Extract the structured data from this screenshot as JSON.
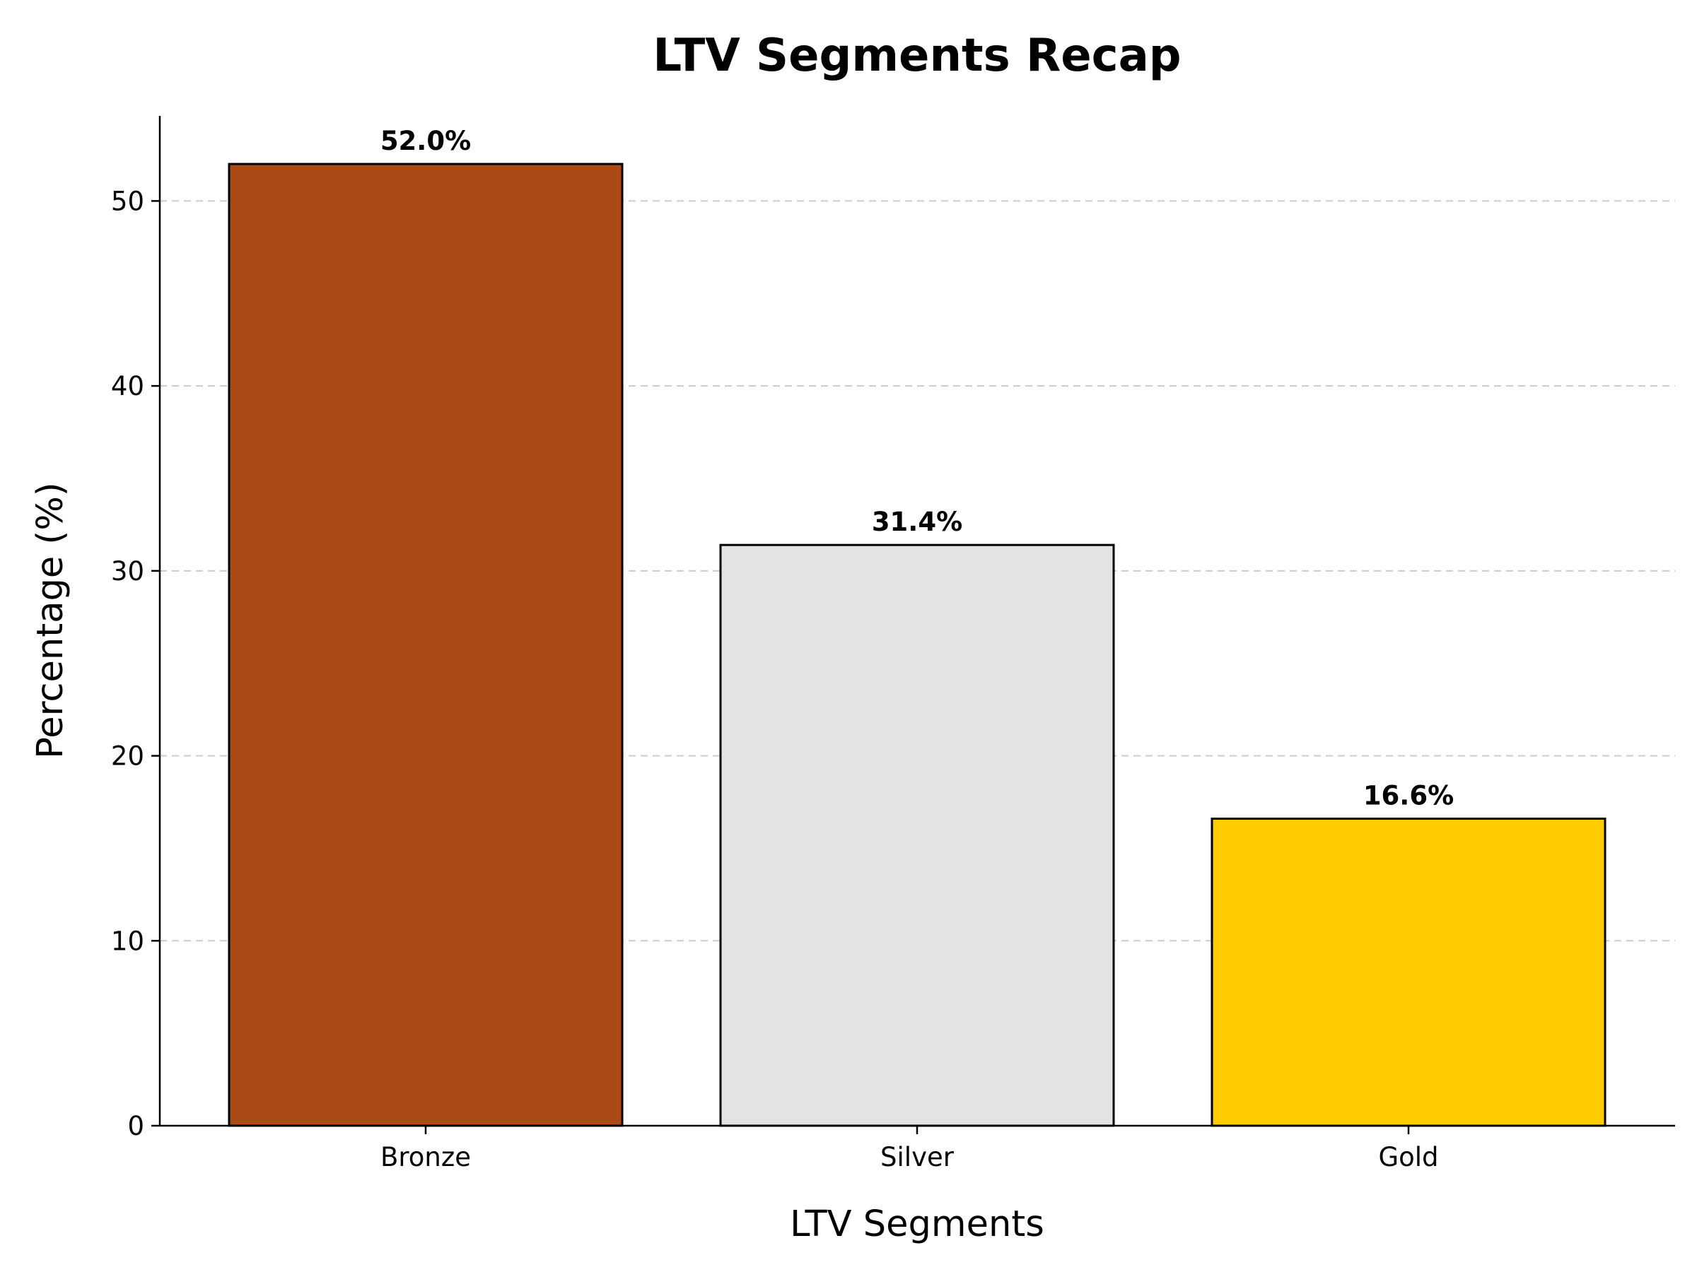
{
  "chart_data": {
    "type": "bar",
    "title": "LTV Segments Recap",
    "xlabel": "LTV Segments",
    "ylabel": "Percentage (%)",
    "categories": [
      "Bronze",
      "Silver",
      "Gold"
    ],
    "values": [
      52.0,
      31.4,
      16.6
    ],
    "value_labels": [
      "52.0%",
      "31.4%",
      "16.6%"
    ],
    "colors": [
      "#ab4a14",
      "#e3e3e3",
      "#ffcc00"
    ],
    "ylim": [
      0,
      54.6
    ],
    "yticks": [
      0,
      10,
      20,
      30,
      40,
      50
    ],
    "grid": "y-dashed",
    "legend": "none"
  }
}
